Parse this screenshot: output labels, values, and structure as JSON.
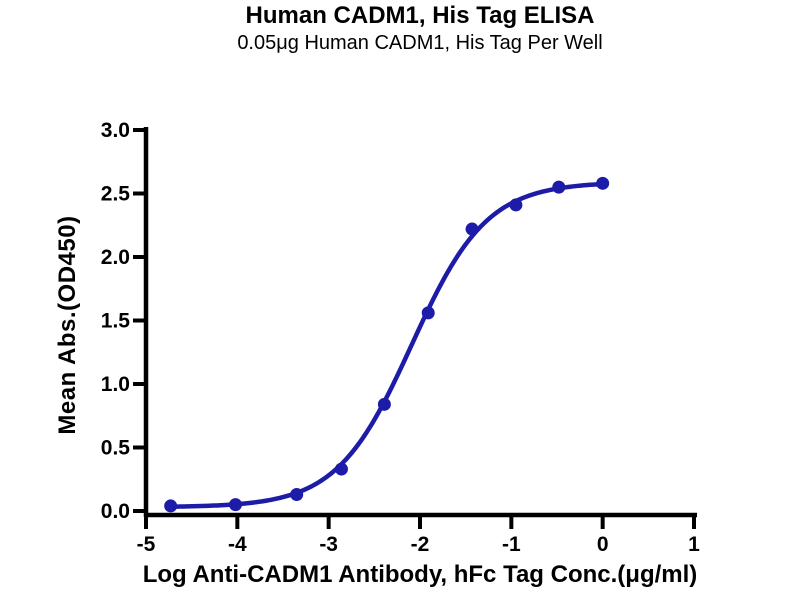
{
  "header": {
    "title": "Human CADM1, His Tag ELISA",
    "subtitle": "0.05μg Human CADM1, His Tag Per Well"
  },
  "style": {
    "axis_color": "#000000",
    "curve_color": "#1c1ca8",
    "background": "#ffffff"
  },
  "chart_data": {
    "type": "line",
    "title": "Human CADM1, His Tag ELISA",
    "subtitle": "0.05μg Human CADM1, His Tag Per Well",
    "xlabel": "Log Anti-CADM1 Antibody, hFc Tag Conc.(μg/ml)",
    "ylabel": "Mean Abs.(OD450)",
    "xlim": [
      -5,
      1
    ],
    "ylim": [
      0,
      3
    ],
    "x_ticks": [
      -5,
      -4,
      -3,
      -2,
      -1,
      0,
      1
    ],
    "x_tick_labels": [
      "-5",
      "-4",
      "-3",
      "-2",
      "-1",
      "0",
      "1"
    ],
    "y_ticks": [
      0.0,
      0.5,
      1.0,
      1.5,
      2.0,
      2.5,
      3.0
    ],
    "y_tick_labels": [
      "0.0",
      "0.5",
      "1.0",
      "1.5",
      "2.0",
      "2.5",
      "3.0"
    ],
    "grid": false,
    "legend": null,
    "series": [
      {
        "name": "Anti-CADM1 Antibody, hFc Tag",
        "color": "#1c1ca8",
        "marker": "circle",
        "x": [
          -4.73,
          -4.02,
          -3.35,
          -2.86,
          -2.39,
          -1.91,
          -1.43,
          -0.95,
          -0.48,
          0.0
        ],
        "y": [
          0.04,
          0.05,
          0.13,
          0.33,
          0.84,
          1.56,
          2.22,
          2.41,
          2.55,
          2.58
        ],
        "fit_4pl": {
          "bottom": 0.03,
          "top": 2.59,
          "log_ec50": -2.09,
          "hill": 1.06
        }
      }
    ]
  }
}
